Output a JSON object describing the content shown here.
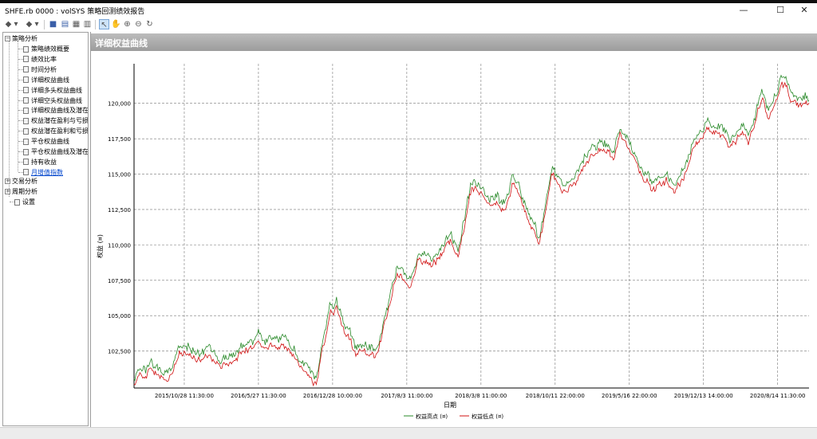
{
  "window": {
    "title": "SHFE.rb 0000 : volSYS 策略回测绩效报告",
    "minimize": "—",
    "maximize": "☐",
    "close": "✕"
  },
  "toolbar": {
    "back": "◆",
    "back_drop": "▾",
    "forward": "◆",
    "forward_drop": "▾",
    "save": "■",
    "export": "▤",
    "print": "▦",
    "table": "▥",
    "pointer": "↖",
    "hand": "✋",
    "zoom_in": "⊕",
    "zoom_out": "⊖",
    "refresh": "↻"
  },
  "tree": {
    "strategy": "策略分析",
    "items": [
      "策略绩效概要",
      "绩效比率",
      "时间分析",
      "详细权益曲线",
      "详细多头权益曲线",
      "详细空头权益曲线",
      "详细权益曲线及潜在",
      "权益潜在盈利与亏损",
      "权益潜在盈利和亏损",
      "平仓权益曲线",
      "平仓权益曲线及潜在",
      "持有收益",
      "月增值指数"
    ],
    "trade": "交易分析",
    "period": "周期分析",
    "settings": "设置"
  },
  "panel": {
    "header": "详细权益曲线"
  },
  "chart_data": {
    "type": "line",
    "xlabel": "日期",
    "ylabel": "权益 (¤)",
    "ylim": [
      100000,
      122800
    ],
    "yticks": [
      102500,
      105000,
      107500,
      110000,
      112500,
      115000,
      117500,
      120000
    ],
    "ytick_labels": [
      "102,500",
      "105,000",
      "107,500",
      "110,000",
      "112,500",
      "115,000",
      "117,500",
      "120,000"
    ],
    "xticks": [
      "2015/10/28 11:30:00",
      "2016/5/27 11:30:00",
      "2016/12/28 10:00:00",
      "2017/8/3 11:00:00",
      "2018/3/8 11:00:00",
      "2018/10/11 22:00:00",
      "2019/5/16 22:00:00",
      "2019/12/13 14:00:00",
      "2020/8/14 11:30:00"
    ],
    "legend": [
      "权益高点 (¤)",
      "权益低点 (¤)"
    ],
    "legend_colors": [
      "#2a8a2a",
      "#d01010"
    ],
    "grid": true,
    "legend_position": "bottom",
    "anchors_t": [
      0,
      0.02,
      0.05,
      0.08,
      0.1,
      0.13,
      0.16,
      0.2,
      0.23,
      0.25,
      0.27,
      0.29,
      0.3,
      0.31,
      0.33,
      0.36,
      0.38,
      0.39,
      0.41,
      0.42,
      0.44,
      0.47,
      0.48,
      0.5,
      0.51,
      0.52,
      0.55,
      0.56,
      0.58,
      0.6,
      0.62,
      0.64,
      0.66,
      0.67,
      0.69,
      0.71,
      0.72,
      0.74,
      0.75,
      0.77,
      0.79,
      0.8,
      0.82,
      0.83,
      0.85,
      0.87,
      0.88,
      0.9,
      0.91,
      0.93,
      0.94,
      0.96,
      0.98,
      1
    ],
    "anchors_v": [
      100300,
      101300,
      101000,
      102800,
      102200,
      101800,
      102700,
      103200,
      103000,
      101000,
      100200,
      105500,
      105800,
      104300,
      102600,
      102300,
      106500,
      108000,
      107200,
      109300,
      108500,
      110500,
      109200,
      114300,
      114000,
      113000,
      112500,
      114700,
      112200,
      110500,
      114800,
      113700,
      115500,
      116300,
      116800,
      115800,
      117700,
      116000,
      115100,
      114400,
      114700,
      114300,
      115600,
      117600,
      118500,
      118200,
      117300,
      118000,
      117200,
      120800,
      118900,
      121500,
      120500,
      120000
    ]
  }
}
